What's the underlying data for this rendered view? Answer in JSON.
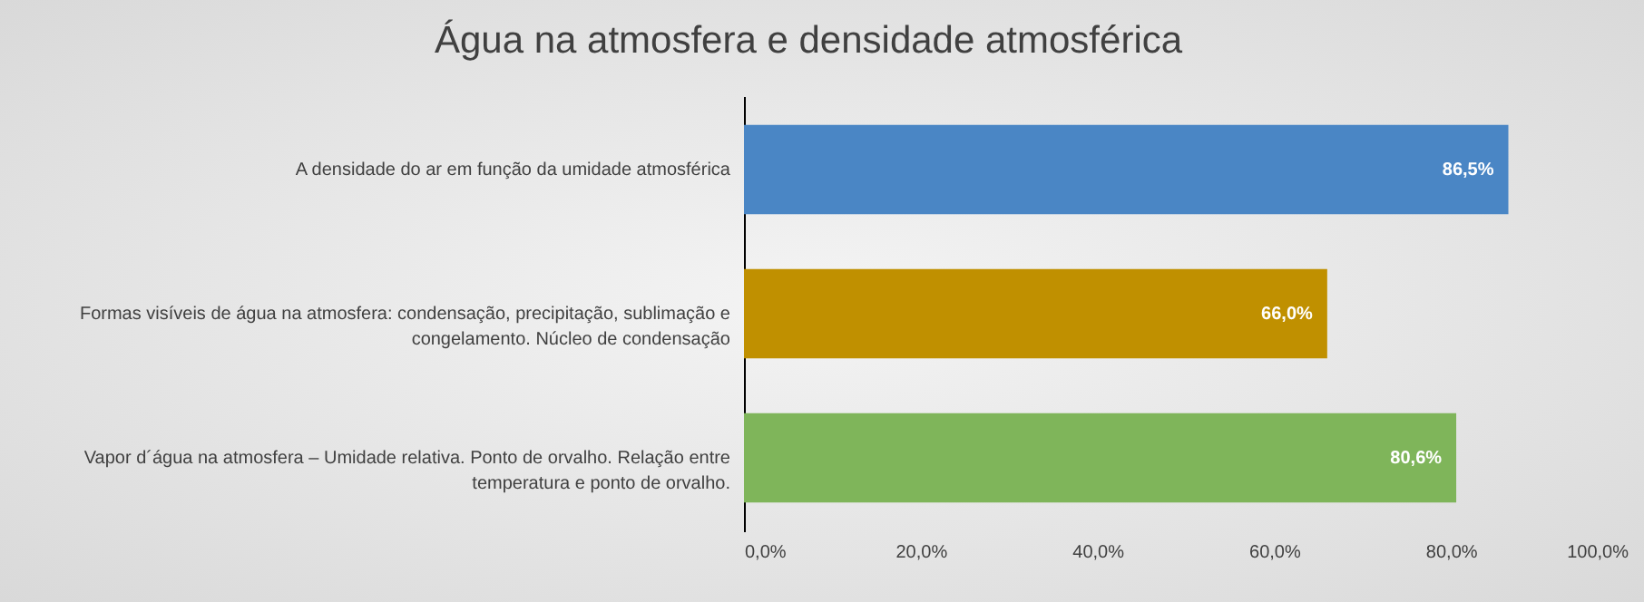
{
  "chart_data": {
    "type": "bar",
    "orientation": "horizontal",
    "title": "Água na atmosfera e densidade atmosférica",
    "categories": [
      "A densidade do ar em função da umidade atmosférica",
      "Formas visíveis de água na atmosfera: condensação, precipitação, sublimação e congelamento. Núcleo de condensação",
      "Vapor d´água na atmosfera – Umidade relativa. Ponto de orvalho. Relação entre temperatura e ponto de orvalho."
    ],
    "values": [
      86.5,
      66.0,
      80.6
    ],
    "colors": [
      "#4a86c5",
      "#c09000",
      "#7fb55a"
    ],
    "value_labels": [
      "86,5%",
      "66,0%",
      "80,6%"
    ],
    "xlim": [
      0,
      100
    ],
    "xticks": [
      {
        "value": 0,
        "label": "0,0%"
      },
      {
        "value": 20,
        "label": "20,0%"
      },
      {
        "value": 40,
        "label": "40,0%"
      },
      {
        "value": 60,
        "label": "60,0%"
      },
      {
        "value": 80,
        "label": "80,0%"
      },
      {
        "value": 100,
        "label": "100,0%"
      }
    ],
    "grid": false
  }
}
